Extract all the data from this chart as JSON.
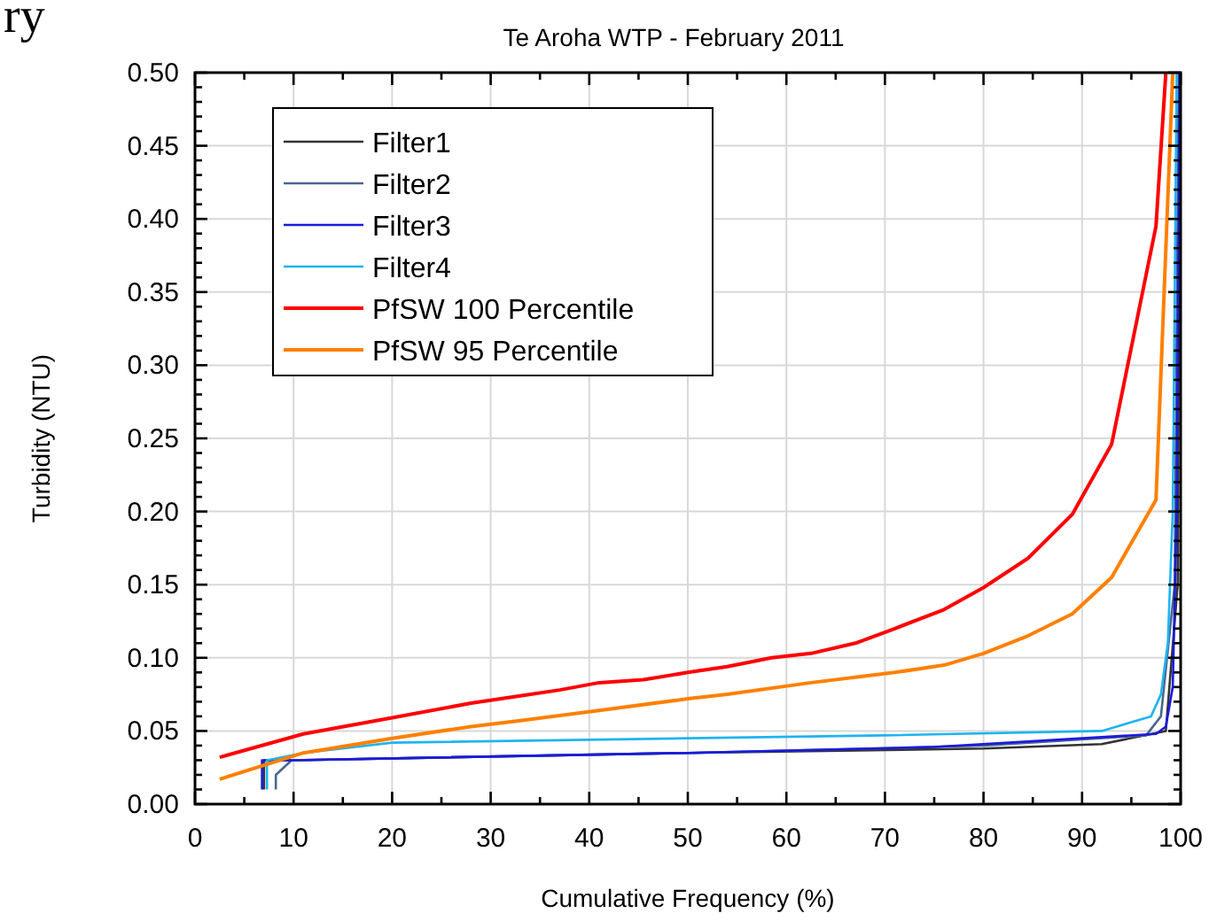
{
  "chart_data": {
    "type": "line",
    "title": "Te Aroha WTP - February 2011",
    "xlabel": "Cumulative Frequency (%)",
    "ylabel": "Turbidity (NTU)",
    "annotations": [
      "ry"
    ],
    "xlim": [
      0,
      100
    ],
    "ylim": [
      0,
      0.5
    ],
    "xticks": [
      0,
      {
        "value": 5,
        "label": null
      },
      10,
      {
        "value": 15,
        "label": null
      },
      20,
      {
        "value": 25,
        "label": null
      },
      30,
      {
        "value": 35,
        "label": null
      },
      40,
      {
        "value": 45,
        "label": null
      },
      50,
      {
        "value": 55,
        "label": null
      },
      60,
      {
        "value": 65,
        "label": null
      },
      70,
      {
        "value": 75,
        "label": null
      },
      80,
      {
        "value": 85,
        "label": null
      },
      90,
      {
        "value": 95,
        "label": null
      },
      100
    ],
    "yticks": [
      {
        "value": 0,
        "label": "0.00"
      },
      {
        "value": 0.01,
        "label": null
      },
      {
        "value": 0.02,
        "label": null
      },
      {
        "value": 0.03,
        "label": null
      },
      {
        "value": 0.04,
        "label": null
      },
      {
        "value": 0.05,
        "label": "0.05"
      },
      {
        "value": 0.06,
        "label": null
      },
      {
        "value": 0.07,
        "label": null
      },
      {
        "value": 0.08,
        "label": null
      },
      {
        "value": 0.09,
        "label": null
      },
      {
        "value": 0.1,
        "label": "0.10"
      },
      {
        "value": 0.11,
        "label": null
      },
      {
        "value": 0.12,
        "label": null
      },
      {
        "value": 0.13,
        "label": null
      },
      {
        "value": 0.14,
        "label": null
      },
      {
        "value": 0.15,
        "label": "0.15"
      },
      {
        "value": 0.16,
        "label": null
      },
      {
        "value": 0.17,
        "label": null
      },
      {
        "value": 0.18,
        "label": null
      },
      {
        "value": 0.19,
        "label": null
      },
      {
        "value": 0.2,
        "label": "0.20"
      },
      {
        "value": 0.21,
        "label": null
      },
      {
        "value": 0.22,
        "label": null
      },
      {
        "value": 0.23,
        "label": null
      },
      {
        "value": 0.24,
        "label": null
      },
      {
        "value": 0.25,
        "label": "0.25"
      },
      {
        "value": 0.26,
        "label": null
      },
      {
        "value": 0.27,
        "label": null
      },
      {
        "value": 0.28,
        "label": null
      },
      {
        "value": 0.29,
        "label": null
      },
      {
        "value": 0.3,
        "label": "0.30"
      },
      {
        "value": 0.31,
        "label": null
      },
      {
        "value": 0.32,
        "label": null
      },
      {
        "value": 0.33,
        "label": null
      },
      {
        "value": 0.34,
        "label": null
      },
      {
        "value": 0.35,
        "label": "0.35"
      },
      {
        "value": 0.36,
        "label": null
      },
      {
        "value": 0.37,
        "label": null
      },
      {
        "value": 0.38,
        "label": null
      },
      {
        "value": 0.39,
        "label": null
      },
      {
        "value": 0.4,
        "label": "0.40"
      },
      {
        "value": 0.41,
        "label": null
      },
      {
        "value": 0.42,
        "label": null
      },
      {
        "value": 0.43,
        "label": null
      },
      {
        "value": 0.44,
        "label": null
      },
      {
        "value": 0.45,
        "label": "0.45"
      },
      {
        "value": 0.46,
        "label": null
      },
      {
        "value": 0.47,
        "label": null
      },
      {
        "value": 0.48,
        "label": null
      },
      {
        "value": 0.49,
        "label": null
      },
      {
        "value": 0.5,
        "label": "0.50"
      }
    ],
    "grid": true,
    "legend": "top left",
    "line_style": "solid",
    "series": [
      {
        "name": "Filter1",
        "color": "#333333",
        "x": [
          7,
          7,
          10,
          50,
          80,
          92,
          98.5,
          99.7,
          99.9
        ],
        "values": [
          0.01,
          0.03,
          0.03,
          0.035,
          0.038,
          0.041,
          0.05,
          0.15,
          0.5
        ]
      },
      {
        "name": "Filter2",
        "color": "#4a6790",
        "x": [
          8.2,
          8.2,
          9.8,
          50,
          80,
          96.5,
          98,
          99.4,
          99.8
        ],
        "values": [
          0.01,
          0.02,
          0.03,
          0.035,
          0.04,
          0.047,
          0.06,
          0.15,
          0.5
        ]
      },
      {
        "name": "Filter3",
        "color": "#1a1adf",
        "x": [
          6.8,
          6.8,
          10,
          50,
          75,
          97.5,
          98.5,
          99.2,
          99.6,
          99.9
        ],
        "values": [
          0.01,
          0.03,
          0.03,
          0.035,
          0.039,
          0.048,
          0.053,
          0.08,
          0.2,
          0.5
        ]
      },
      {
        "name": "Filter4",
        "color": "#1eb4f0",
        "x": [
          7.3,
          7.3,
          11,
          20,
          50,
          70,
          92,
          97,
          98,
          98.7,
          99.2,
          99.6
        ],
        "values": [
          0.01,
          0.03,
          0.035,
          0.042,
          0.045,
          0.047,
          0.05,
          0.06,
          0.075,
          0.11,
          0.2,
          0.5
        ]
      },
      {
        "name": "PfSW 100 Percentile",
        "color": "#ff0000",
        "x": [
          2.5,
          11,
          20,
          28,
          33,
          37,
          41,
          45.5,
          50,
          54,
          58.5,
          62.5,
          67,
          71,
          76,
          80,
          84.5,
          89,
          93,
          97.5,
          98.5
        ],
        "values": [
          0.032,
          0.048,
          0.059,
          0.069,
          0.074,
          0.078,
          0.083,
          0.085,
          0.09,
          0.094,
          0.1,
          0.103,
          0.11,
          0.12,
          0.133,
          0.148,
          0.168,
          0.198,
          0.246,
          0.395,
          0.5
        ]
      },
      {
        "name": "PfSW 95 Percentile",
        "color": "#ff8000",
        "x": [
          2.5,
          11,
          20,
          28,
          33,
          41,
          50,
          54,
          62.5,
          71,
          76,
          80,
          84.5,
          89,
          93,
          97.5,
          99.2
        ],
        "values": [
          0.017,
          0.035,
          0.045,
          0.053,
          0.057,
          0.064,
          0.072,
          0.075,
          0.083,
          0.09,
          0.095,
          0.103,
          0.115,
          0.13,
          0.155,
          0.208,
          0.5
        ]
      }
    ]
  }
}
